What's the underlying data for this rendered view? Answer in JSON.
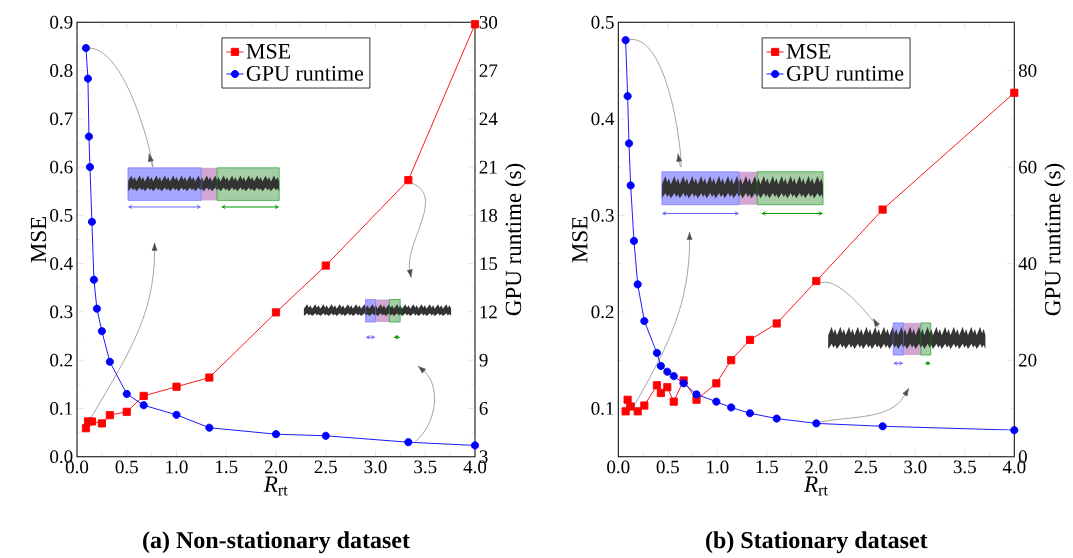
{
  "chart_data": [
    {
      "type": "line",
      "title": "(a) Non-stationary dataset",
      "xlabel": "*R*$_{rt}$",
      "ylabel": "MSE",
      "y2label": "GPU runtime (s)",
      "xlim": [
        0,
        4
      ],
      "xticks": [
        {
          "value": 0,
          "label": "0.0"
        },
        {
          "value": 0.5,
          "label": "0.5"
        },
        {
          "value": 1,
          "label": "1.0"
        },
        {
          "value": 1.5,
          "label": "1.5"
        },
        {
          "value": 2,
          "label": "2.0"
        },
        {
          "value": 2.5,
          "label": "2.5"
        },
        {
          "value": 3,
          "label": "3.0"
        },
        {
          "value": 3.5,
          "label": "3.5"
        },
        {
          "value": 4,
          "label": "4.0"
        }
      ],
      "ylim": [
        0,
        0.9
      ],
      "yticks": [
        {
          "value": 0,
          "label": "0.0"
        },
        0.1,
        0.2,
        0.3,
        0.4,
        0.5,
        0.6,
        0.7,
        0.8,
        0.9
      ],
      "y2lim": [
        3,
        30
      ],
      "y2ticks": [
        3,
        6,
        9,
        12,
        15,
        18,
        21,
        24,
        27,
        30
      ],
      "legend": "top",
      "series": [
        {
          "name": "MSE",
          "color": "#ff0000",
          "marker": "square",
          "x": [
            0.09,
            0.11,
            0.15,
            0.25,
            0.33,
            0.5,
            0.67,
            1,
            1.33,
            2,
            2.5,
            3.33,
            4
          ],
          "values": [
            0.059,
            0.073,
            0.073,
            0.069,
            0.086,
            0.093,
            0.126,
            0.145,
            0.164,
            0.299,
            0.396,
            0.573,
            0.896
          ]
        },
        {
          "name": "GPU runtime",
          "color": "#0000ff",
          "marker": "circle",
          "axis": "y2",
          "x": [
            0.09,
            0.11,
            0.12,
            0.13,
            0.15,
            0.17,
            0.2,
            0.25,
            0.33,
            0.5,
            0.67,
            1,
            1.33,
            2,
            2.5,
            3.33,
            4
          ],
          "values": [
            28.4,
            26.5,
            22.9,
            21.0,
            17.6,
            14.0,
            12.2,
            10.8,
            8.9,
            6.9,
            6.2,
            5.6,
            4.8,
            4.4,
            4.3,
            3.9,
            3.7
          ]
        }
      ]
    },
    {
      "type": "line",
      "title": "(b) Stationary dataset",
      "xlabel": "*R*$_{rt}$",
      "ylabel": "MSE",
      "y2label": "GPU runtime (s)",
      "xlim": [
        0,
        4
      ],
      "xticks": [
        {
          "value": 0,
          "label": "0.0"
        },
        {
          "value": 0.5,
          "label": "0.5"
        },
        {
          "value": 1,
          "label": "1.0"
        },
        {
          "value": 1.5,
          "label": "1.5"
        },
        {
          "value": 2,
          "label": "2.0"
        },
        {
          "value": 2.5,
          "label": "2.5"
        },
        {
          "value": 3,
          "label": "3.0"
        },
        {
          "value": 3.5,
          "label": "3.5"
        },
        {
          "value": 4,
          "label": "4.0"
        }
      ],
      "ylim": [
        0.05,
        0.5
      ],
      "yticks": [
        0.1,
        0.2,
        0.3,
        0.4,
        0.5
      ],
      "y2lim": [
        0,
        90
      ],
      "y2ticks": [
        0,
        20,
        40,
        60,
        80
      ],
      "legend": "top",
      "series": [
        {
          "name": "MSE",
          "color": "#ff0000",
          "marker": "square",
          "x": [
            0.074,
            0.094,
            0.125,
            0.196,
            0.263,
            0.39,
            0.43,
            0.495,
            0.56,
            0.66,
            0.79,
            0.99,
            1.14,
            1.33,
            1.6,
            2.0,
            2.67,
            4.0
          ],
          "values": [
            0.097,
            0.109,
            0.102,
            0.097,
            0.103,
            0.124,
            0.116,
            0.122,
            0.107,
            0.129,
            0.109,
            0.126,
            0.15,
            0.171,
            0.188,
            0.232,
            0.306,
            0.427
          ]
        },
        {
          "name": "GPU runtime",
          "color": "#0000ff",
          "marker": "circle",
          "axis": "y2",
          "x": [
            0.074,
            0.094,
            0.108,
            0.125,
            0.158,
            0.196,
            0.263,
            0.39,
            0.43,
            0.495,
            0.56,
            0.66,
            0.79,
            0.99,
            1.14,
            1.33,
            1.6,
            2.0,
            2.67,
            4.0
          ],
          "values": [
            86.3,
            74.7,
            64.9,
            56.2,
            44.7,
            35.7,
            28.1,
            21.5,
            18.8,
            17.6,
            16.7,
            15.2,
            12.9,
            11.4,
            10.2,
            9.0,
            7.9,
            6.9,
            6.3,
            5.5
          ]
        }
      ]
    }
  ]
}
